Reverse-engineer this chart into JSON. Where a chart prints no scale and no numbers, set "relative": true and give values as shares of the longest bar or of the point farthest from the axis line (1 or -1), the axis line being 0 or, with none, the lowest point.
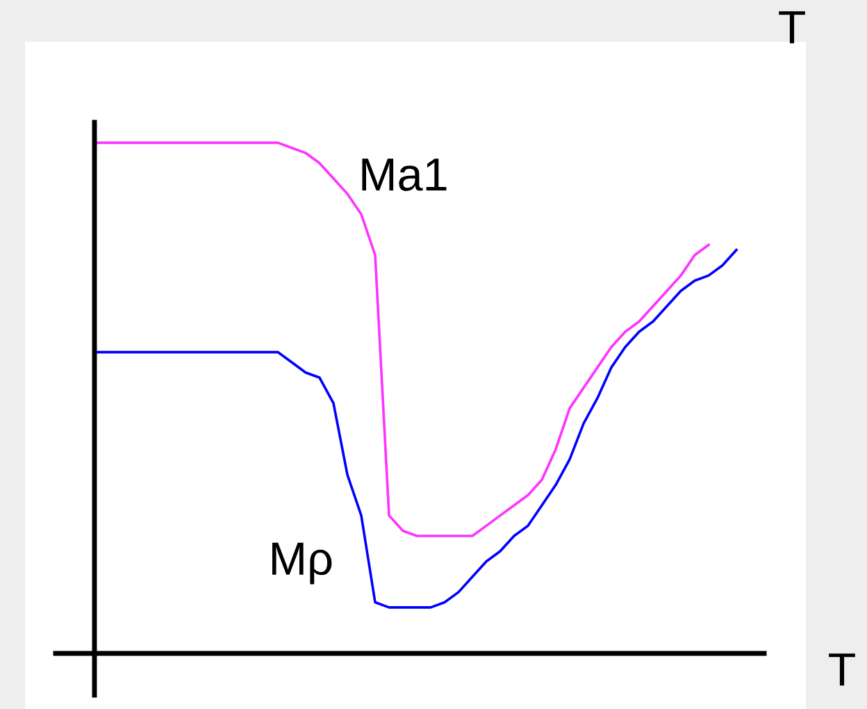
{
  "chart_data": {
    "type": "line",
    "relative": true,
    "categories": [
      null,
      null,
      null,
      null,
      null,
      null,
      null,
      null,
      null,
      null,
      null,
      null,
      null,
      null,
      null,
      null,
      null,
      null,
      null,
      null,
      null,
      null,
      null,
      null,
      null,
      null,
      null,
      null,
      null,
      null,
      null,
      null,
      null,
      null,
      null,
      null,
      null,
      null,
      null,
      null,
      null,
      null,
      null,
      null,
      null,
      null,
      null,
      null
    ],
    "series": [
      {
        "name": "Ma1",
        "color": "#ff33ff",
        "values": [
          1.0,
          1.0,
          1.0,
          1.0,
          1.0,
          1.0,
          1.0,
          1.0,
          1.0,
          1.0,
          1.0,
          1.0,
          1.0,
          1.0,
          0.99,
          0.98,
          0.96,
          0.93,
          0.9,
          0.86,
          0.78,
          0.27,
          0.24,
          0.23,
          0.23,
          0.23,
          0.23,
          0.23,
          0.25,
          0.27,
          0.29,
          0.31,
          0.34,
          0.4,
          0.48,
          0.52,
          0.56,
          0.6,
          0.63,
          0.65,
          0.68,
          0.71,
          0.74,
          0.78,
          0.8,
          null,
          null,
          null
        ]
      },
      {
        "name": "Mρ",
        "color": "#0000ff",
        "values": [
          0.59,
          0.59,
          0.59,
          0.59,
          0.59,
          0.59,
          0.59,
          0.59,
          0.59,
          0.59,
          0.59,
          0.59,
          0.59,
          0.59,
          0.57,
          0.55,
          0.54,
          0.49,
          0.35,
          0.27,
          0.1,
          0.09,
          0.09,
          0.09,
          0.09,
          0.1,
          0.12,
          0.15,
          0.18,
          0.2,
          0.23,
          0.25,
          0.29,
          0.33,
          0.38,
          0.45,
          0.5,
          0.56,
          0.6,
          0.63,
          0.65,
          0.68,
          0.71,
          0.73,
          0.74,
          0.76,
          0.79,
          null
        ]
      }
    ],
    "annotations": [
      "T",
      "T"
    ],
    "legend": false,
    "marker": "none",
    "line_style": "solid"
  }
}
